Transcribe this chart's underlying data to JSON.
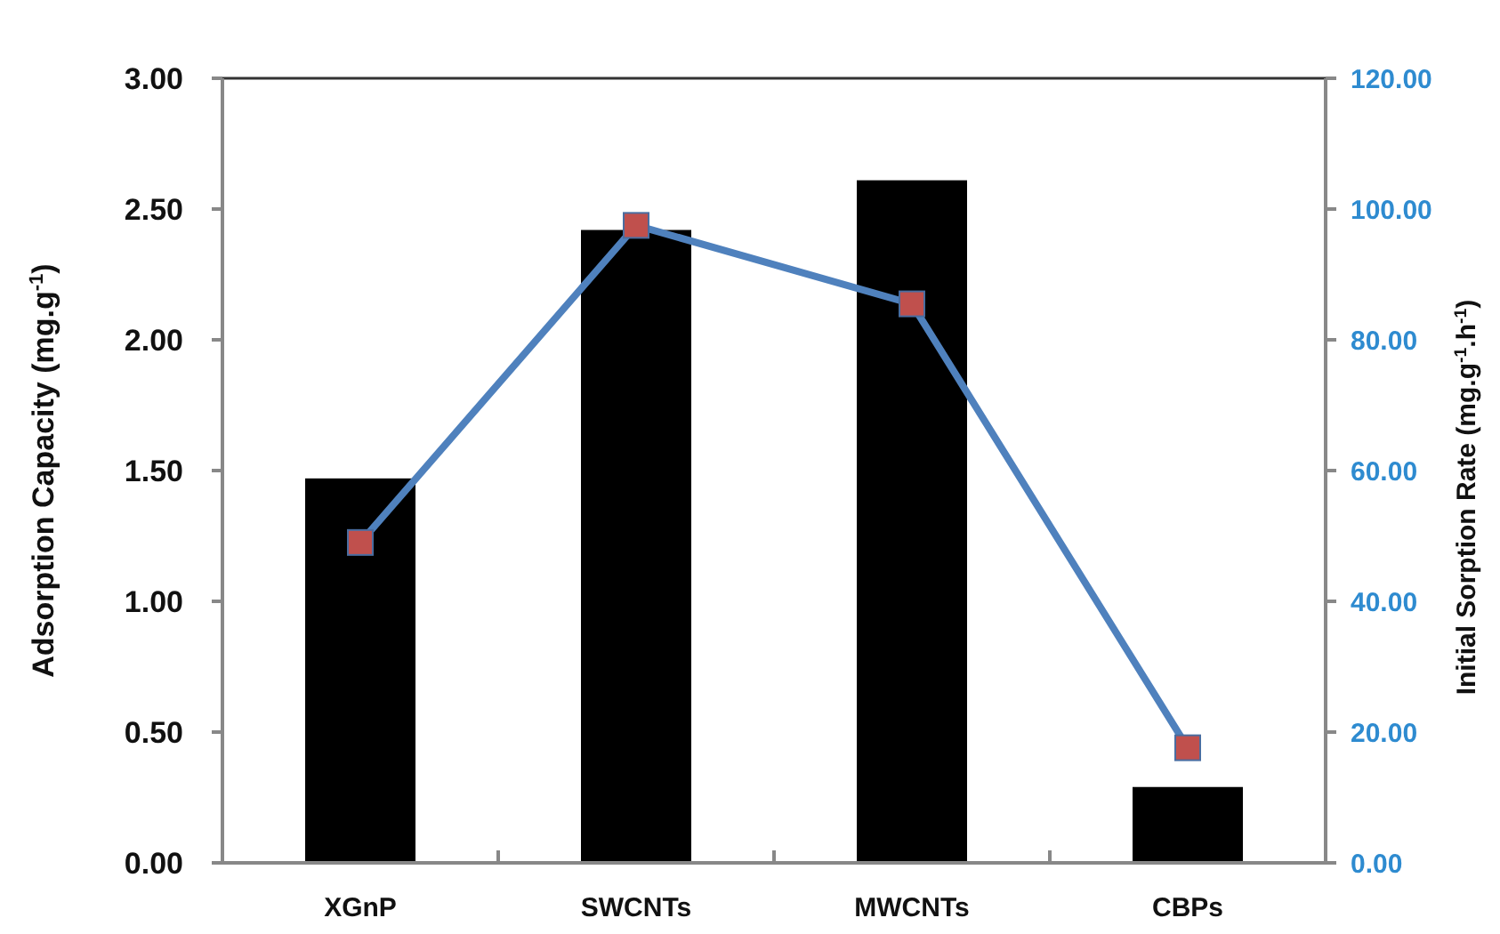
{
  "chart_data": {
    "type": "bar",
    "categories": [
      "XGnP",
      "SWCNTs",
      "MWCNTs",
      "CBPs"
    ],
    "ylabel": "Adsorption Capacity (mg.g$^{-1}$)",
    "y2label": "Initial Sorption Rate (mg.g$^{-1}$.h$^{-1}$)",
    "series": [
      {
        "color": "#000000",
        "values": [
          1.47,
          2.42,
          2.61,
          0.29
        ]
      },
      {
        "type": "line",
        "axis": "y2",
        "color": "#4f81bd",
        "marker": "square",
        "values": [
          49.0,
          97.5,
          85.5,
          17.6
        ]
      }
    ],
    "ylim": [
      0,
      3
    ],
    "yticks": [
      {
        "value": 0,
        "label": "0.00"
      },
      {
        "value": 0.5,
        "label": "0.50"
      },
      {
        "value": 1,
        "label": "1.00"
      },
      {
        "value": 1.5,
        "label": "1.50"
      },
      {
        "value": 2,
        "label": "2.00"
      },
      {
        "value": 2.5,
        "label": "2.50"
      },
      {
        "value": 3,
        "label": "3.00"
      }
    ],
    "y2lim": [
      0,
      120
    ],
    "y2ticks": [
      {
        "value": 0,
        "label": "0.00"
      },
      {
        "value": 20,
        "label": "20.00"
      },
      {
        "value": 40,
        "label": "40.00"
      },
      {
        "value": 60,
        "label": "60.00"
      },
      {
        "value": 80,
        "label": "80.00"
      },
      {
        "value": 100,
        "label": "100.00"
      },
      {
        "value": 120,
        "label": "120.00"
      }
    ],
    "grid": false
  }
}
